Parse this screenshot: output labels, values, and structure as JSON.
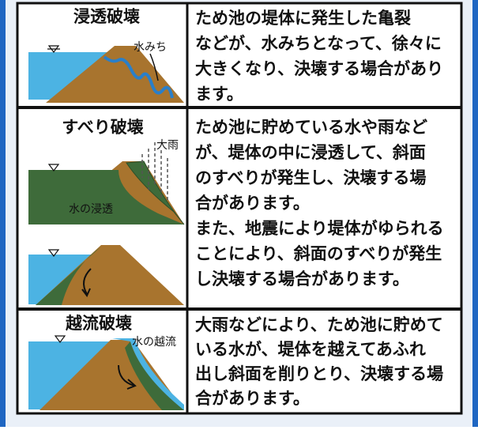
{
  "rows": [
    {
      "title": "浸透破壊",
      "labels": [
        "水みち"
      ],
      "text": [
        "ため池の堤体に発生した亀裂",
        "などが、水みちとなって、徐々に",
        "大きくなり、決壊する場合があり",
        "ます。"
      ]
    },
    {
      "title": "すべり破壊",
      "labels": [
        "大雨",
        "水の浸透"
      ],
      "text": [
        "ため池に貯めている水や雨など",
        "が、堤体の中に浸透して、斜面",
        "のすべりが発生し、決壊する場",
        "合があります。",
        "また、地震により堤体がゆられる",
        "ことにより、斜面のすべりが発生",
        "し決壊する場合があります。"
      ]
    },
    {
      "title": "越流破壊",
      "labels": [
        "水の越流"
      ],
      "text": [
        "大雨などにより、ため池に貯めて",
        "いる水が、堤体を越えてあふれ",
        "出し斜面を削りとり、決壊する場",
        "合があります。"
      ]
    }
  ]
}
